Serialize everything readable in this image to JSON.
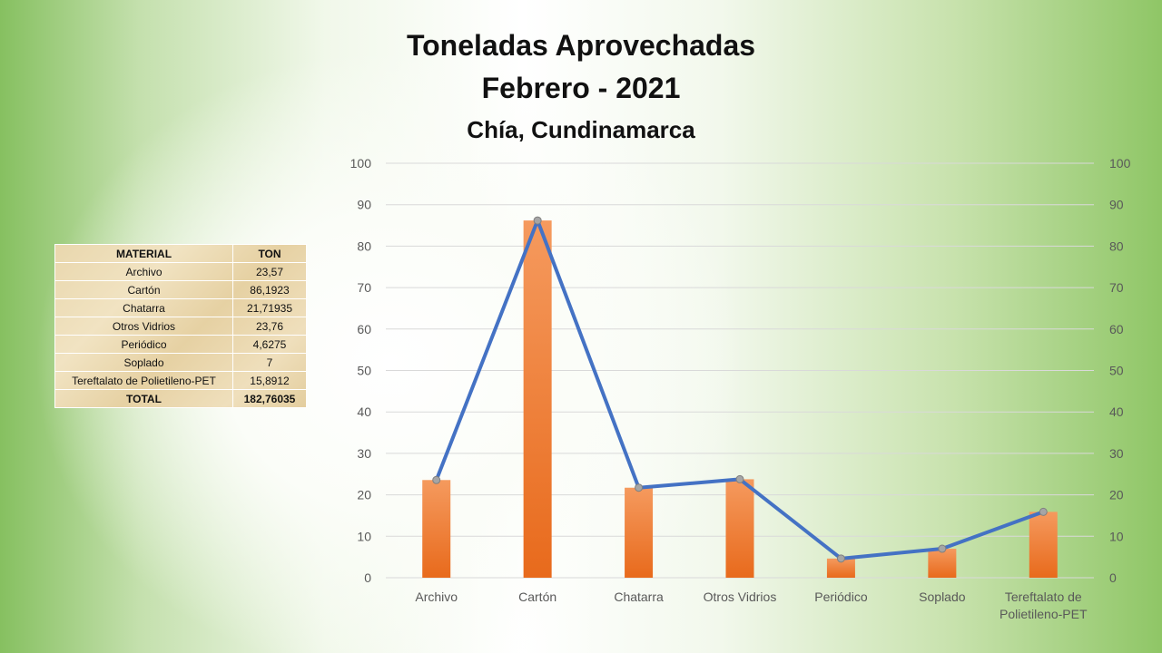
{
  "title_line1": "Toneladas Aprovechadas",
  "title_line2": "Febrero - 2021",
  "subtitle": "Chía, Cundinamarca",
  "table": {
    "headers": [
      "MATERIAL",
      "TON"
    ],
    "rows": [
      {
        "material": "Archivo",
        "ton": "23,57"
      },
      {
        "material": "Cartón",
        "ton": "86,1923"
      },
      {
        "material": "Chatarra",
        "ton": "21,71935"
      },
      {
        "material": "Otros Vidrios",
        "ton": "23,76"
      },
      {
        "material": "Periódico",
        "ton": "4,6275"
      },
      {
        "material": "Soplado",
        "ton": "7"
      },
      {
        "material": "Tereftalato de Polietileno-PET",
        "ton": "15,8912"
      }
    ],
    "total": {
      "label": "TOTAL",
      "ton": "182,76035"
    }
  },
  "chart_data": {
    "type": "bar",
    "categories": [
      "Archivo",
      "Cartón",
      "Chatarra",
      "Otros Vidrios",
      "Periódico",
      "Soplado",
      "Tereftalato de Polietileno-PET"
    ],
    "category_labels": [
      [
        "Archivo"
      ],
      [
        "Cartón"
      ],
      [
        "Chatarra"
      ],
      [
        "Otros Vidrios"
      ],
      [
        "Periódico"
      ],
      [
        "Soplado"
      ],
      [
        "Tereftalato de",
        "Polietileno-PET"
      ]
    ],
    "series": [
      {
        "type": "bar",
        "values": [
          23.57,
          86.1923,
          21.71935,
          23.76,
          4.6275,
          7,
          15.8912
        ],
        "color": "#ed7d31"
      },
      {
        "type": "line",
        "values": [
          23.57,
          86.1923,
          21.71935,
          23.76,
          4.6275,
          7,
          15.8912
        ],
        "color": "#4472c4",
        "marker_color": "#a5a5a5"
      }
    ],
    "ylim": [
      0,
      100
    ],
    "y_ticks": [
      0,
      10,
      20,
      30,
      40,
      50,
      60,
      70,
      80,
      90,
      100
    ],
    "secondary_y_axis": true,
    "grid": true,
    "legend": "none",
    "xlabel": "",
    "ylabel": ""
  }
}
